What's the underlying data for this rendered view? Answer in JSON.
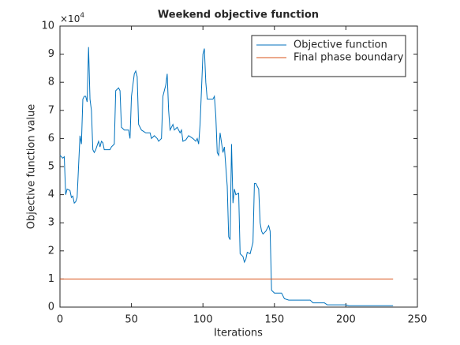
{
  "chart_data": {
    "type": "line",
    "title": "Weekend objective function",
    "xlabel": "Iterations",
    "ylabel": "Objective function value",
    "y_multiplier_base": "×10",
    "y_multiplier_power": "4",
    "xlim": [
      0,
      250
    ],
    "xticks": [
      0,
      50,
      100,
      150,
      200,
      250
    ],
    "ylim": [
      0,
      10
    ],
    "yticks": [
      0,
      1,
      2,
      3,
      4,
      5,
      6,
      7,
      8,
      9,
      10
    ],
    "legend": "northeast",
    "series": [
      {
        "name": "Objective function",
        "color": "#0072bd",
        "x": [
          0,
          2,
          3,
          4,
          5,
          7,
          8,
          9,
          10,
          11,
          12,
          13,
          14,
          15,
          16,
          17,
          18,
          19,
          20,
          21,
          22,
          23,
          24,
          25,
          27,
          28,
          29,
          30,
          31,
          35,
          36,
          38,
          39,
          41,
          42,
          43,
          45,
          48,
          49,
          50,
          52,
          53,
          54,
          55,
          57,
          60,
          63,
          64,
          66,
          68,
          69,
          71,
          72,
          74,
          75,
          76,
          77,
          79,
          80,
          82,
          84,
          85,
          86,
          88,
          90,
          93,
          95,
          96,
          97,
          98,
          100,
          101,
          102,
          103,
          107,
          108,
          109,
          110,
          111,
          112,
          114,
          115,
          117,
          118,
          119,
          120,
          121,
          122,
          123,
          125,
          126,
          128,
          129,
          130,
          131,
          133,
          135,
          136,
          137,
          139,
          140,
          141,
          142,
          144,
          146,
          147,
          148,
          150,
          155,
          157,
          160,
          175,
          177,
          185,
          187,
          200,
          202,
          233
        ],
        "values": [
          5.4,
          5.3,
          5.35,
          4.0,
          4.2,
          4.15,
          3.9,
          3.95,
          3.7,
          3.75,
          3.9,
          5.0,
          6.1,
          5.8,
          7.4,
          7.5,
          7.5,
          7.3,
          9.25,
          7.4,
          7.0,
          5.6,
          5.5,
          5.6,
          5.9,
          5.7,
          5.9,
          5.85,
          5.6,
          5.6,
          5.7,
          5.8,
          7.7,
          7.8,
          7.7,
          6.4,
          6.3,
          6.3,
          6.0,
          7.5,
          8.3,
          8.4,
          8.2,
          6.5,
          6.3,
          6.2,
          6.2,
          6.0,
          6.1,
          6.0,
          5.9,
          6.0,
          7.5,
          7.9,
          8.3,
          7.0,
          6.3,
          6.5,
          6.3,
          6.4,
          6.2,
          6.3,
          5.9,
          5.95,
          6.1,
          6.0,
          5.9,
          6.0,
          5.8,
          6.5,
          9.0,
          9.2,
          8.0,
          7.4,
          7.4,
          7.5,
          6.8,
          5.5,
          5.4,
          6.2,
          5.5,
          5.7,
          4.3,
          2.5,
          2.4,
          5.8,
          3.7,
          4.2,
          4.0,
          4.05,
          1.9,
          1.8,
          1.6,
          1.7,
          1.95,
          1.9,
          2.3,
          4.4,
          4.4,
          4.2,
          3.0,
          2.7,
          2.6,
          2.7,
          2.9,
          2.7,
          0.6,
          0.5,
          0.5,
          0.3,
          0.25,
          0.25,
          0.15,
          0.15,
          0.08,
          0.08,
          0.05,
          0.05
        ]
      },
      {
        "name": "Final phase boundary",
        "color": "#d95319",
        "x": [
          0,
          233
        ],
        "values": [
          1,
          1
        ]
      }
    ]
  }
}
